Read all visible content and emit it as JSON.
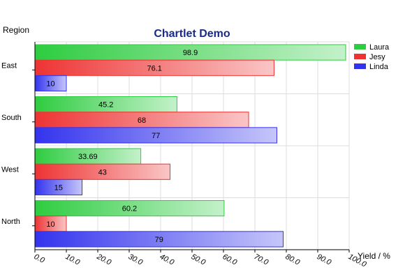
{
  "chart_data": {
    "type": "bar",
    "orientation": "horizontal",
    "title": "Chartlet Demo",
    "xlabel": "Yield / %",
    "ylabel": "Region",
    "categories": [
      "East",
      "South",
      "West",
      "North"
    ],
    "series": [
      {
        "name": "Laura",
        "values": [
          98.9,
          45.2,
          33.69,
          60.2
        ],
        "color": "#2ecc40"
      },
      {
        "name": "Jesy",
        "values": [
          76.1,
          68,
          43,
          10
        ],
        "color": "#ee3333"
      },
      {
        "name": "Linda",
        "values": [
          10,
          77,
          15,
          79
        ],
        "color": "#3333ee"
      }
    ],
    "value_labels": [
      [
        "98.9",
        "45.2",
        "33.69",
        "60.2"
      ],
      [
        "76.1",
        "68",
        "43",
        "10"
      ],
      [
        "10",
        "77",
        "15",
        "79"
      ]
    ],
    "xlim": [
      0,
      100
    ],
    "xticks": [
      0,
      10,
      20,
      30,
      40,
      50,
      60,
      70,
      80,
      90,
      100
    ],
    "xtick_labels": [
      "0.0",
      "10.0",
      "20.0",
      "30.0",
      "40.0",
      "50.0",
      "60.0",
      "70.0",
      "80.0",
      "90.0",
      "100.0"
    ],
    "grid": true,
    "legend": "top-right"
  }
}
